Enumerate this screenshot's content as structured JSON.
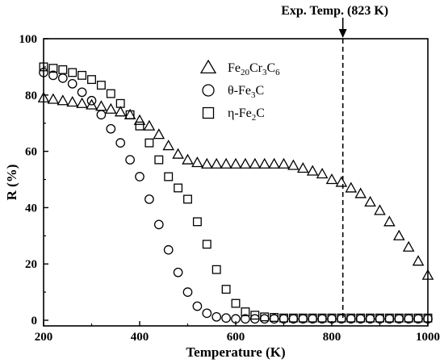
{
  "chart_data": {
    "type": "scatter",
    "xlabel": "Temperature (K)",
    "ylabel": "R (%)",
    "xlim": [
      200,
      1000
    ],
    "ylim": [
      -2,
      100
    ],
    "xticks": [
      "200",
      "400",
      "600",
      "800",
      "1000"
    ],
    "yticks": [
      "0",
      "20",
      "40",
      "60",
      "80",
      "100"
    ],
    "legend": {
      "placement": "top-center",
      "entries": [
        {
          "marker": "triangle",
          "prefix": "Fe",
          "sub1": "20",
          "mid": "Cr",
          "sub2": "3",
          "mid2": "C",
          "sub3": "6"
        },
        {
          "marker": "circle",
          "prefix": "θ-Fe",
          "sub1": "3",
          "mid": "C"
        },
        {
          "marker": "square",
          "prefix": "η-Fe",
          "sub1": "2",
          "mid": "C"
        }
      ]
    },
    "annotation": {
      "text": "Exp. Temp. (823 K)",
      "x": 823
    },
    "series": [
      {
        "name": "Fe20Cr3C6",
        "marker": "triangle",
        "x": [
          200,
          220,
          240,
          260,
          280,
          300,
          320,
          340,
          360,
          380,
          400,
          420,
          440,
          460,
          480,
          500,
          520,
          540,
          560,
          580,
          600,
          620,
          640,
          660,
          680,
          700,
          720,
          740,
          760,
          780,
          800,
          820,
          840,
          860,
          880,
          900,
          920,
          940,
          960,
          980,
          1000
        ],
        "y": [
          79,
          78.5,
          78,
          77.5,
          77,
          76.5,
          76,
          75,
          74,
          73,
          71,
          69,
          66,
          62,
          59,
          57,
          56,
          55.5,
          55.5,
          55.5,
          55.5,
          55.5,
          55.5,
          55.5,
          55.5,
          55.5,
          55,
          54,
          53,
          52,
          50,
          49,
          47,
          45,
          42,
          39,
          35,
          30,
          26,
          21,
          16
        ]
      },
      {
        "name": "θ-Fe3C",
        "marker": "circle",
        "x": [
          200,
          220,
          240,
          260,
          280,
          300,
          320,
          340,
          360,
          380,
          400,
          420,
          440,
          460,
          480,
          500,
          520,
          540,
          560,
          580,
          600,
          620,
          640,
          660,
          680,
          700,
          720,
          740,
          760,
          780,
          800,
          820,
          840,
          860,
          880,
          900,
          920,
          940,
          960,
          980,
          1000
        ],
        "y": [
          88,
          87,
          86,
          84,
          81,
          78,
          73,
          68,
          63,
          57,
          51,
          43,
          34,
          25,
          17,
          10,
          5,
          2.5,
          1.2,
          0.8,
          0.5,
          0.5,
          0.5,
          0.5,
          0.5,
          0.5,
          0.5,
          0.5,
          0.5,
          0.5,
          0.5,
          0.5,
          0.5,
          0.5,
          0.5,
          0.5,
          0.5,
          0.5,
          0.5,
          0.5,
          0.5
        ]
      },
      {
        "name": "η-Fe2C",
        "marker": "square",
        "x": [
          200,
          220,
          240,
          260,
          280,
          300,
          320,
          340,
          360,
          380,
          400,
          420,
          440,
          460,
          480,
          500,
          520,
          540,
          560,
          580,
          600,
          620,
          640,
          660,
          680,
          700,
          720,
          740,
          760,
          780,
          800,
          820,
          840,
          860,
          880,
          900,
          920,
          940,
          960,
          980,
          1000
        ],
        "y": [
          90,
          89.5,
          89,
          88,
          87,
          85.5,
          83.5,
          80.5,
          77,
          73,
          69,
          63,
          57,
          51,
          47,
          43,
          35,
          27,
          18,
          11,
          6,
          3,
          1.8,
          1.2,
          1,
          0.8,
          0.8,
          0.8,
          0.8,
          0.8,
          0.8,
          0.8,
          0.8,
          0.8,
          0.8,
          0.8,
          0.8,
          0.8,
          0.8,
          0.8,
          0.8
        ]
      }
    ]
  }
}
